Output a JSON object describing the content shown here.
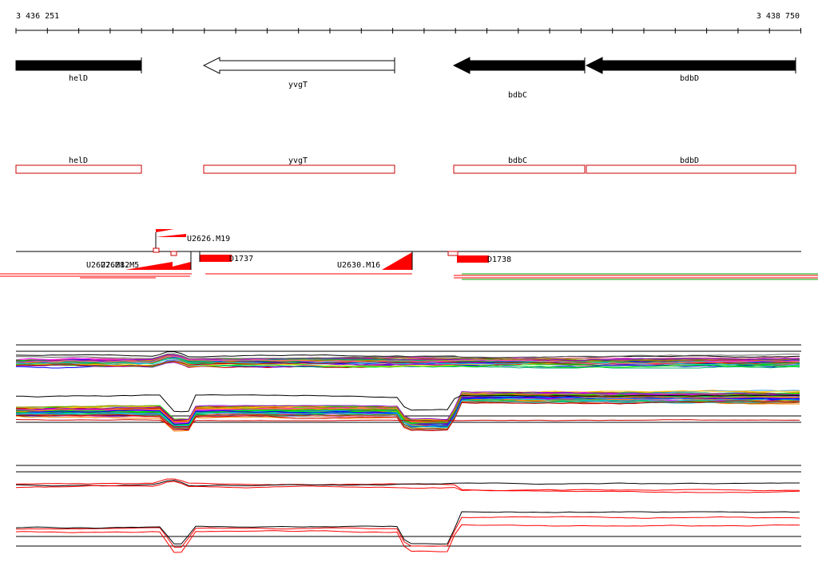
{
  "ruler": {
    "start_label": "3 436 251",
    "end_label": "3 438 750",
    "start_bp": 3436251,
    "end_bp": 3438750
  },
  "genes": [
    {
      "id": "gene-helD",
      "label": "helD",
      "strand": "+",
      "fill": "#000000"
    },
    {
      "id": "gene-yvgT",
      "label": "yvgT",
      "strand": "-",
      "fill": "#ffffff"
    },
    {
      "id": "gene-bdbC",
      "label": "bdbC",
      "strand": "-",
      "fill": "#000000"
    },
    {
      "id": "gene-bdbD",
      "label": "bdbD",
      "strand": "-",
      "fill": "#000000"
    }
  ],
  "gene_boxes": [
    {
      "label": "helD"
    },
    {
      "label": "yvgT"
    },
    {
      "label": "bdbC"
    },
    {
      "label": "bdbD"
    }
  ],
  "features": {
    "labels": [
      "U2626.M19",
      "D1737",
      "U2630.M16",
      "D1738"
    ],
    "overlapping_label": "U2627.M12",
    "overlapping_label_2": "U2628.M5"
  },
  "colors": {
    "feature_red": "#ff0000",
    "box_outline": "#cc0000",
    "axis": "#000000",
    "track_green": "#00aa00"
  }
}
